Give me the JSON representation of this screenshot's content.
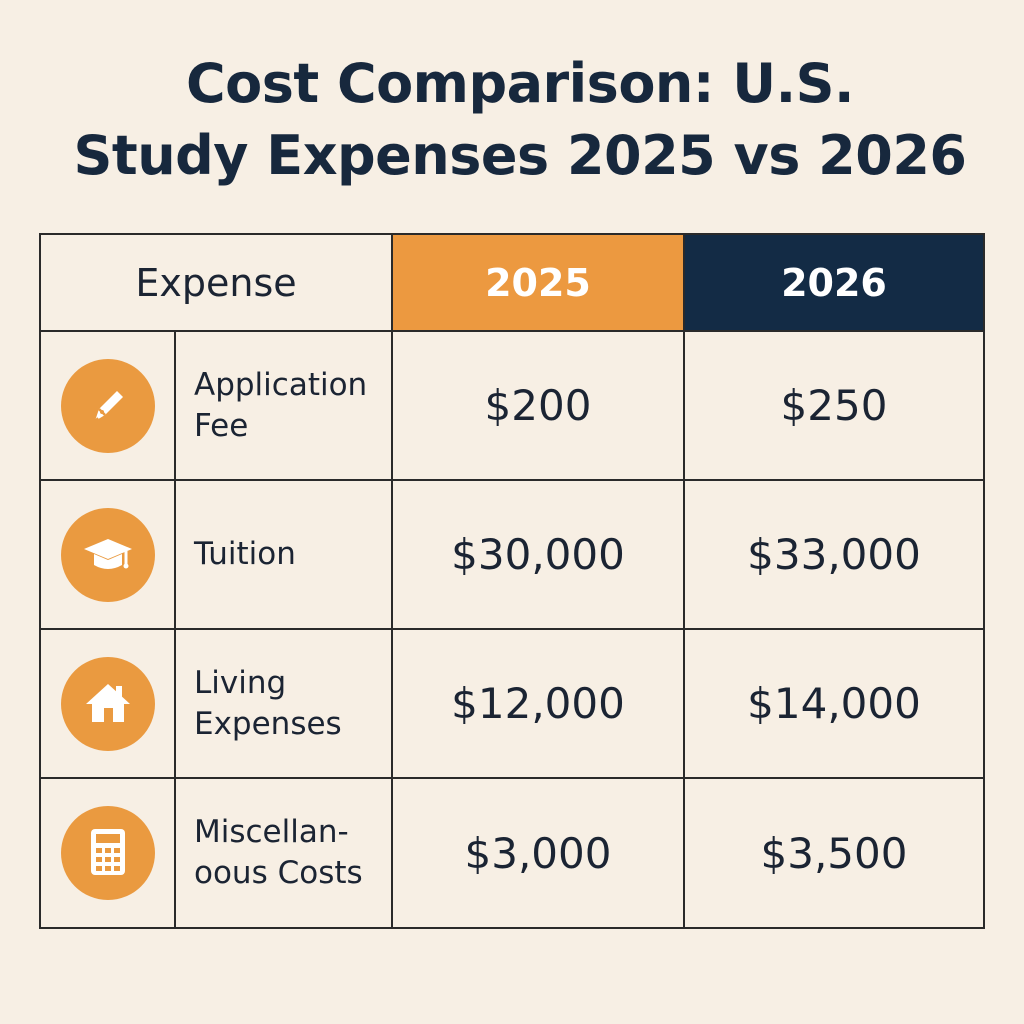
{
  "chart_data": {
    "type": "table",
    "title_line1": "Cost Comparison: U.S.",
    "title_line2": "Study Expenses 2025 vs 2026",
    "columns": [
      "Expense",
      "2025",
      "2026"
    ],
    "rows": [
      {
        "label": "Application\nFee",
        "icon": "pen-icon",
        "v2025": "$200",
        "v2026": "$250"
      },
      {
        "label": "Tuition",
        "icon": "graduation-cap-icon",
        "v2025": "$30,000",
        "v2026": "$33,000"
      },
      {
        "label": "Living\nExpenses",
        "icon": "house-icon",
        "v2025": "$12,000",
        "v2026": "$14,000"
      },
      {
        "label": "Miscellan-\noous Costs",
        "icon": "calculator-icon",
        "v2025": "$3,000",
        "v2026": "$3,500"
      }
    ],
    "colors": {
      "col2025": "#ec9940",
      "col2026": "#132b45",
      "icon_bg": "#ea9a40",
      "background": "#f7efe4"
    }
  }
}
